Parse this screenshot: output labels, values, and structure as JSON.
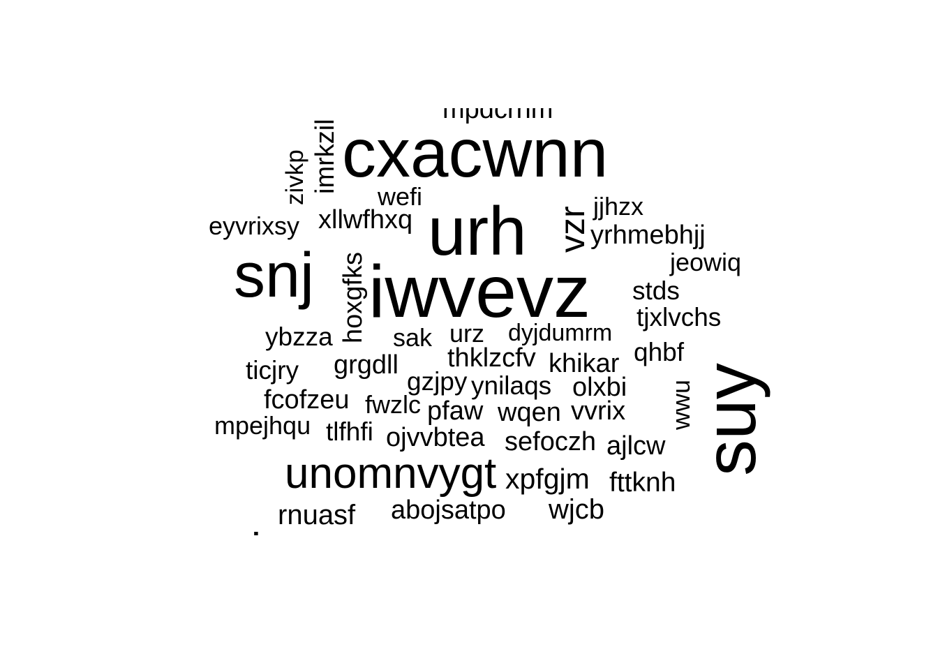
{
  "wordcloud": {
    "words": [
      {
        "id": "iwvevz",
        "text": "iwvevz"
      },
      {
        "id": "cxacwnn",
        "text": "cxacwnn"
      },
      {
        "id": "suy",
        "text": "suy"
      },
      {
        "id": "urh",
        "text": "urh"
      },
      {
        "id": "snj",
        "text": "snj"
      },
      {
        "id": "unomnvygt",
        "text": "unomnvygt"
      },
      {
        "id": "vzr",
        "text": "vzr"
      },
      {
        "id": "mpdcrnm",
        "text": "mpdcrnm"
      },
      {
        "id": "imrkzil",
        "text": "imrkzil"
      },
      {
        "id": "zivkp",
        "text": "zivkp"
      },
      {
        "id": "wefi",
        "text": "wefi"
      },
      {
        "id": "jjhzx",
        "text": "jjhzx"
      },
      {
        "id": "eyvrixsy",
        "text": "eyvrixsy"
      },
      {
        "id": "xllwfhxq",
        "text": "xllwfhxq"
      },
      {
        "id": "yrhmebhjj",
        "text": "yrhmebhjj"
      },
      {
        "id": "jeowiq",
        "text": "jeowiq"
      },
      {
        "id": "hoxgfks",
        "text": "hoxgfks"
      },
      {
        "id": "stds",
        "text": "stds"
      },
      {
        "id": "tjxlvchs",
        "text": "tjxlvchs"
      },
      {
        "id": "ybzza",
        "text": "ybzza"
      },
      {
        "id": "sak",
        "text": "sak"
      },
      {
        "id": "urz",
        "text": "urz"
      },
      {
        "id": "dyjdumrm",
        "text": "dyjdumrm"
      },
      {
        "id": "qhbf",
        "text": "qhbf"
      },
      {
        "id": "ticjry",
        "text": "ticjry"
      },
      {
        "id": "grgdll",
        "text": "grgdll"
      },
      {
        "id": "thklzcfv",
        "text": "thklzcfv"
      },
      {
        "id": "khikar",
        "text": "khikar"
      },
      {
        "id": "gzjpy",
        "text": "gzjpy"
      },
      {
        "id": "ynilaqs",
        "text": "ynilaqs"
      },
      {
        "id": "olxbi",
        "text": "olxbi"
      },
      {
        "id": "wwu",
        "text": "wwu"
      },
      {
        "id": "fcofzeu",
        "text": "fcofzeu"
      },
      {
        "id": "fwzlc",
        "text": "fwzlc"
      },
      {
        "id": "pfaw",
        "text": "pfaw"
      },
      {
        "id": "wqen",
        "text": "wqen"
      },
      {
        "id": "vvrix",
        "text": "vvrix"
      },
      {
        "id": "mpejhqu",
        "text": "mpejhqu"
      },
      {
        "id": "tlfhfi",
        "text": "tlfhfi"
      },
      {
        "id": "ojvvbtea",
        "text": "ojvvbtea"
      },
      {
        "id": "sefoczh",
        "text": "sefoczh"
      },
      {
        "id": "ajlcw",
        "text": "ajlcw"
      },
      {
        "id": "xpfgjm",
        "text": "xpfgjm"
      },
      {
        "id": "fttknh",
        "text": "fttknh"
      },
      {
        "id": "rnuasf",
        "text": "rnuasf"
      },
      {
        "id": "abojsatpo",
        "text": "abojsatpo"
      },
      {
        "id": "wjcb",
        "text": "wjcb"
      },
      {
        "id": "cut_bottom",
        "text": "lsvaanaw"
      }
    ]
  }
}
